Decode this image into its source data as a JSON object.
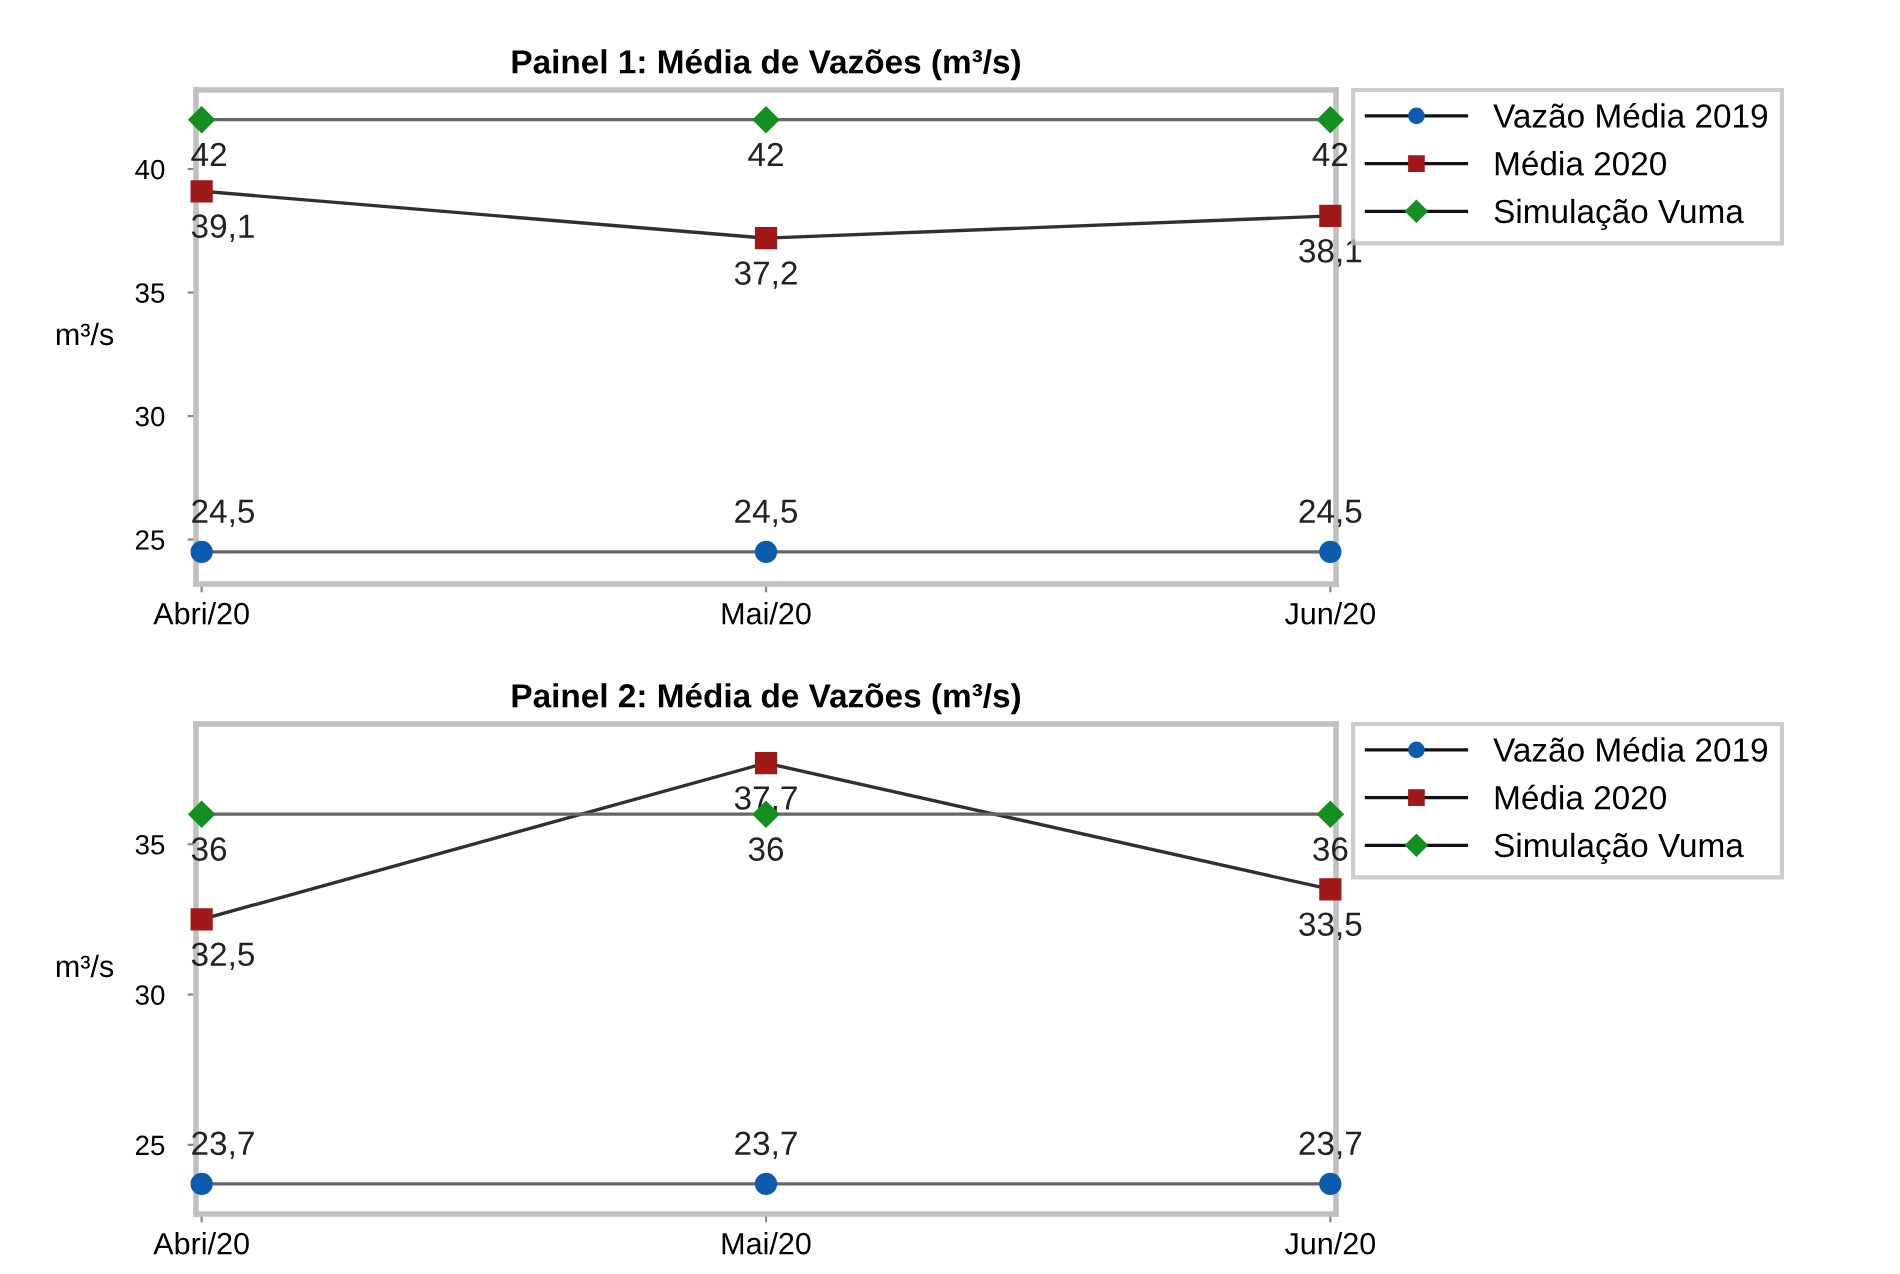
{
  "chart_data": [
    {
      "type": "line",
      "title": "Painel 1: Média de Vazões (m³/s)",
      "ylabel": "m³/s",
      "categories": [
        "Abri/20",
        "Mai/20",
        "Jun/20"
      ],
      "ylim": [
        23.2,
        43.2
      ],
      "yticks": [
        25,
        30,
        35,
        40
      ],
      "grid": false,
      "legend": "right",
      "series": [
        {
          "name": "Vazão Média 2019",
          "color": "#0b5cad",
          "marker": "circle",
          "values": [
            24.5,
            24.5,
            24.5
          ],
          "value_labels": [
            "24,5",
            "24,5",
            "24,5"
          ]
        },
        {
          "name": "Média 2020",
          "color": "#a01818",
          "marker": "square",
          "values": [
            39.1,
            37.2,
            38.1
          ],
          "value_labels": [
            "39,1",
            "37,2",
            "38,1"
          ]
        },
        {
          "name": "Simulação Vuma",
          "color": "#13901f",
          "marker": "diamond",
          "values": [
            42,
            42,
            42
          ],
          "value_labels": [
            "42",
            "42",
            "42"
          ]
        }
      ]
    },
    {
      "type": "line",
      "title": "Painel 2: Média de Vazões (m³/s)",
      "ylabel": "m³/s",
      "categories": [
        "Abri/20",
        "Mai/20",
        "Jun/20"
      ],
      "ylim": [
        22.7,
        39
      ],
      "yticks": [
        25,
        30,
        35
      ],
      "grid": false,
      "legend": "right",
      "series": [
        {
          "name": "Vazão Média 2019",
          "color": "#0b5cad",
          "marker": "circle",
          "values": [
            23.7,
            23.7,
            23.7
          ],
          "value_labels": [
            "23,7",
            "23,7",
            "23,7"
          ]
        },
        {
          "name": "Média 2020",
          "color": "#a01818",
          "marker": "square",
          "values": [
            32.5,
            37.7,
            33.5
          ],
          "value_labels": [
            "32,5",
            "37,7",
            "33,5"
          ]
        },
        {
          "name": "Simulação Vuma",
          "color": "#13901f",
          "marker": "diamond",
          "values": [
            36,
            36,
            36
          ],
          "value_labels": [
            "36",
            "36",
            "36"
          ]
        }
      ]
    }
  ]
}
